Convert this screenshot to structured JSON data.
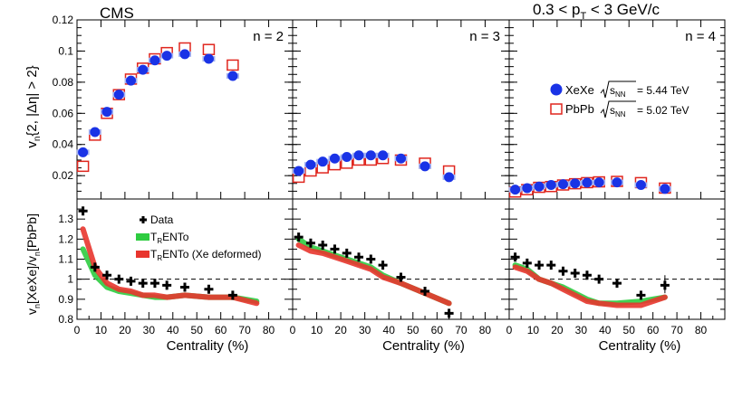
{
  "header": {
    "experiment": "CMS",
    "kinematics": {
      "pre": "0.3 < p",
      "sub": "T",
      "post": " < 3 GeV/c"
    }
  },
  "colors": {
    "xexe": "#1a33e6",
    "xexe_err": "#a6b4f2",
    "pbpb": "#e0261e",
    "data": "#000000",
    "trento": "#2ecc40",
    "trento_def": "#e8352e"
  },
  "chart_data": [
    {
      "type": "scatter",
      "panel": "top",
      "ylabel": {
        "main": "v",
        "sub": "n",
        "rest": "{2, |Δη| > 2}"
      },
      "ylim": [
        0.005,
        0.12
      ],
      "yticks": [
        0.02,
        0.04,
        0.06,
        0.08,
        0.1,
        0.12
      ],
      "xlim": [
        0,
        90
      ],
      "legend": {
        "placement": "right-middle",
        "xexe": {
          "name": "XeXe",
          "energy": "= 5.44 TeV"
        },
        "pbpb": {
          "name": "PbPb",
          "energy": "= 5.02 TeV"
        },
        "sqrt": {
          "base": "s",
          "sub": "NN"
        }
      },
      "subpanels": [
        {
          "label": "n = 2",
          "series": [
            {
              "name": "XeXe",
              "x": [
                2.5,
                7.5,
                12.5,
                17.5,
                22.5,
                27.5,
                32.5,
                37.5,
                45,
                55,
                65
              ],
              "y": [
                0.035,
                0.048,
                0.061,
                0.072,
                0.081,
                0.088,
                0.094,
                0.097,
                0.098,
                0.095,
                0.084
              ]
            },
            {
              "name": "PbPb",
              "x": [
                2.5,
                7.5,
                12.5,
                17.5,
                22.5,
                27.5,
                32.5,
                37.5,
                45,
                55,
                65
              ],
              "y": [
                0.026,
                0.046,
                0.06,
                0.072,
                0.082,
                0.089,
                0.095,
                0.099,
                0.102,
                0.101,
                0.091
              ]
            }
          ]
        },
        {
          "label": "n = 3",
          "series": [
            {
              "name": "XeXe",
              "x": [
                2.5,
                7.5,
                12.5,
                17.5,
                22.5,
                27.5,
                32.5,
                37.5,
                45,
                55,
                65
              ],
              "y": [
                0.023,
                0.027,
                0.029,
                0.031,
                0.032,
                0.033,
                0.033,
                0.033,
                0.031,
                0.026,
                0.019
              ]
            },
            {
              "name": "PbPb",
              "x": [
                2.5,
                7.5,
                12.5,
                17.5,
                22.5,
                27.5,
                32.5,
                37.5,
                45,
                55,
                65
              ],
              "y": [
                0.019,
                0.023,
                0.025,
                0.027,
                0.028,
                0.03,
                0.03,
                0.031,
                0.03,
                0.028,
                0.023
              ]
            }
          ]
        },
        {
          "label": "n = 4",
          "series": [
            {
              "name": "XeXe",
              "x": [
                2.5,
                7.5,
                12.5,
                17.5,
                22.5,
                27.5,
                32.5,
                37.5,
                45,
                55,
                65
              ],
              "y": [
                0.011,
                0.012,
                0.013,
                0.014,
                0.0145,
                0.015,
                0.0155,
                0.0157,
                0.0157,
                0.014,
                0.0115
              ]
            },
            {
              "name": "PbPb",
              "x": [
                2.5,
                7.5,
                12.5,
                17.5,
                22.5,
                27.5,
                32.5,
                37.5,
                45,
                55,
                65
              ],
              "y": [
                0.0095,
                0.011,
                0.0125,
                0.013,
                0.014,
                0.0148,
                0.0155,
                0.016,
                0.0163,
                0.0155,
                0.012
              ]
            }
          ]
        }
      ]
    },
    {
      "type": "line",
      "panel": "bottom",
      "ylabel": {
        "a": "v",
        "a_sub": "n",
        "b": "[XeXe]/v",
        "b_sub": "n",
        "c": "[PbPb]"
      },
      "ylim": [
        0.8,
        1.4
      ],
      "yticks": [
        0.8,
        0.9,
        1,
        1.1,
        1.2,
        1.3
      ],
      "xlim": [
        0,
        90
      ],
      "xticks": [
        0,
        10,
        20,
        30,
        40,
        50,
        60,
        70,
        80
      ],
      "xlabel": "Centrality (%)",
      "reference_line": 1,
      "legend": {
        "placement": "top-left of first subpanel",
        "data": "Data",
        "trento": {
          "pre": "T",
          "sub": "R",
          "post": "ENTo"
        },
        "trento_def": {
          "pre": "T",
          "sub": "R",
          "post": "ENTo (Xe deformed)"
        }
      },
      "subpanels": [
        {
          "data": {
            "x": [
              2.5,
              7.5,
              12.5,
              17.5,
              22.5,
              27.5,
              32.5,
              37.5,
              45,
              55,
              65
            ],
            "y": [
              1.34,
              1.06,
              1.02,
              1.0,
              0.99,
              0.98,
              0.98,
              0.97,
              0.96,
              0.95,
              0.92
            ]
          },
          "trento": {
            "x": [
              2.5,
              7.5,
              12.5,
              17.5,
              22.5,
              27.5,
              32.5,
              37.5,
              45,
              55,
              65,
              75
            ],
            "y": [
              1.15,
              1.02,
              0.96,
              0.94,
              0.93,
              0.92,
              0.91,
              0.91,
              0.92,
              0.91,
              0.91,
              0.89
            ]
          },
          "trento_def": {
            "x": [
              2.5,
              7.5,
              12.5,
              17.5,
              22.5,
              27.5,
              32.5,
              37.5,
              45,
              55,
              65,
              75
            ],
            "y": [
              1.25,
              1.06,
              0.98,
              0.95,
              0.94,
              0.92,
              0.92,
              0.91,
              0.92,
              0.91,
              0.91,
              0.88
            ]
          }
        },
        {
          "data": {
            "x": [
              2.5,
              7.5,
              12.5,
              17.5,
              22.5,
              27.5,
              32.5,
              37.5,
              45,
              55,
              65
            ],
            "y": [
              1.21,
              1.18,
              1.17,
              1.15,
              1.13,
              1.11,
              1.1,
              1.07,
              1.01,
              0.94,
              0.83
            ]
          },
          "trento": {
            "x": [
              2.5,
              7.5,
              12.5,
              17.5,
              22.5,
              27.5,
              32.5,
              37.5,
              45,
              55,
              65
            ],
            "y": [
              1.2,
              1.16,
              1.14,
              1.12,
              1.1,
              1.08,
              1.06,
              1.02,
              0.98,
              0.93,
              0.88
            ]
          },
          "trento_def": {
            "x": [
              2.5,
              7.5,
              12.5,
              17.5,
              22.5,
              27.5,
              32.5,
              37.5,
              45,
              55,
              65
            ],
            "y": [
              1.17,
              1.14,
              1.13,
              1.11,
              1.09,
              1.07,
              1.05,
              1.01,
              0.98,
              0.93,
              0.88
            ]
          }
        },
        {
          "data": {
            "x": [
              2.5,
              7.5,
              12.5,
              17.5,
              22.5,
              27.5,
              32.5,
              37.5,
              45,
              55,
              65
            ],
            "y": [
              1.11,
              1.08,
              1.07,
              1.07,
              1.04,
              1.03,
              1.02,
              1.0,
              0.98,
              0.92,
              0.97
            ]
          },
          "trento": {
            "x": [
              2.5,
              7.5,
              12.5,
              17.5,
              22.5,
              27.5,
              32.5,
              37.5,
              45,
              55,
              65
            ],
            "y": [
              1.07,
              1.05,
              1.0,
              0.98,
              0.96,
              0.93,
              0.9,
              0.88,
              0.88,
              0.89,
              0.91
            ]
          },
          "trento_def": {
            "x": [
              2.5,
              7.5,
              12.5,
              17.5,
              22.5,
              27.5,
              32.5,
              37.5,
              45,
              55,
              65
            ],
            "y": [
              1.06,
              1.04,
              1.0,
              0.98,
              0.95,
              0.92,
              0.89,
              0.88,
              0.87,
              0.87,
              0.91
            ]
          }
        }
      ]
    }
  ]
}
